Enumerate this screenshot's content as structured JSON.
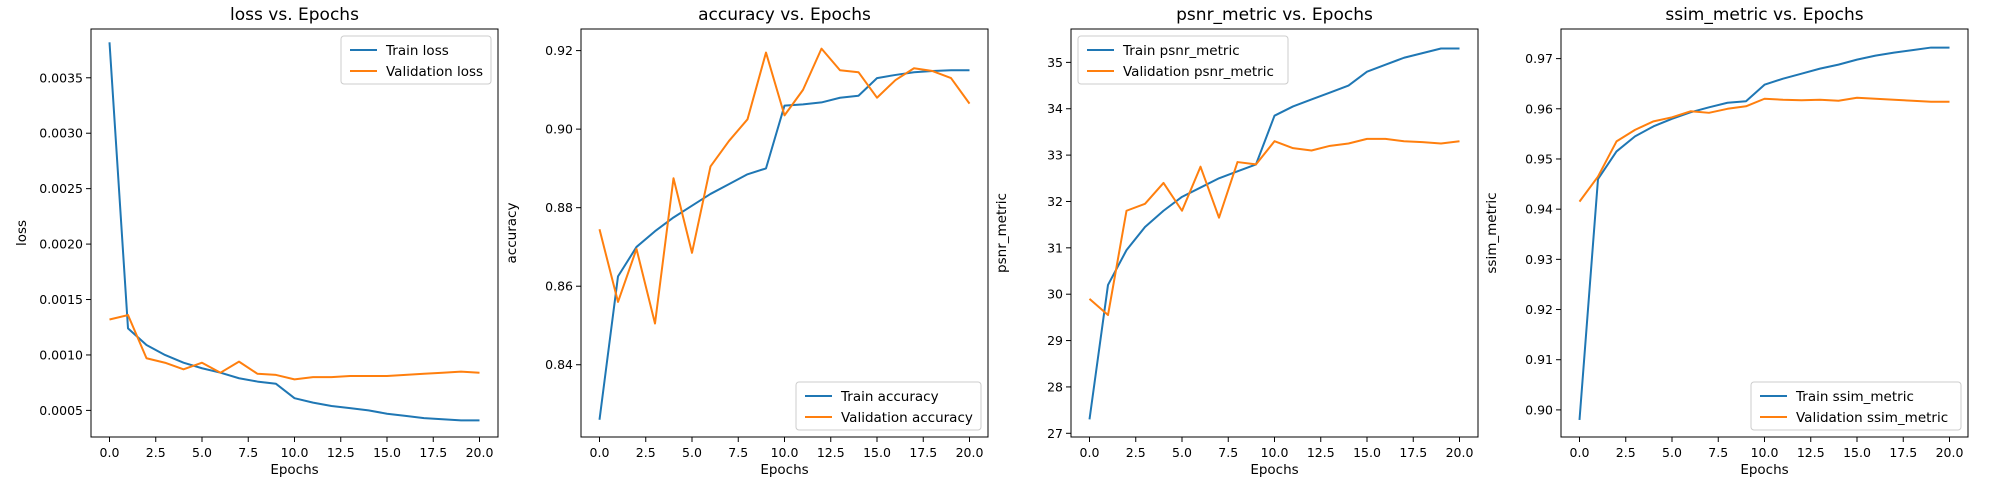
{
  "chart_data": [
    {
      "type": "line",
      "title": "loss vs. Epochs",
      "xlabel": "Epochs",
      "ylabel": "loss",
      "xlim": [
        -1,
        21
      ],
      "ylim": [
        0.00026,
        0.00394
      ],
      "xticks": [
        0.0,
        2.5,
        5.0,
        7.5,
        10.0,
        12.5,
        15.0,
        17.5,
        20.0
      ],
      "xtick_labels": [
        "0.0",
        "2.5",
        "5.0",
        "7.5",
        "10.0",
        "12.5",
        "15.0",
        "17.5",
        "20.0"
      ],
      "yticks": [
        0.0005,
        0.001,
        0.0015,
        0.002,
        0.0025,
        0.003,
        0.0035
      ],
      "ytick_labels": [
        "0.0005",
        "0.0010",
        "0.0015",
        "0.0020",
        "0.0025",
        "0.0030",
        "0.0035"
      ],
      "legend": "upper-right",
      "x": [
        0,
        1,
        2,
        3,
        4,
        5,
        6,
        7,
        8,
        9,
        10,
        11,
        12,
        13,
        14,
        15,
        16,
        17,
        18,
        19,
        20
      ],
      "series": [
        {
          "name": "Train loss",
          "color": "#1f77b4",
          "values": [
            0.00382,
            0.00124,
            0.00109,
            0.001,
            0.00093,
            0.00088,
            0.00084,
            0.00079,
            0.00076,
            0.00074,
            0.00061,
            0.00057,
            0.00054,
            0.00052,
            0.0005,
            0.00047,
            0.00045,
            0.00043,
            0.00042,
            0.00041,
            0.00041
          ]
        },
        {
          "name": "Validation loss",
          "color": "#ff7f0e",
          "values": [
            0.00132,
            0.00136,
            0.00097,
            0.00093,
            0.00087,
            0.00093,
            0.00084,
            0.00094,
            0.00083,
            0.00082,
            0.00078,
            0.0008,
            0.0008,
            0.00081,
            0.00081,
            0.00081,
            0.00082,
            0.00083,
            0.00084,
            0.00085,
            0.00084
          ]
        }
      ]
    },
    {
      "type": "line",
      "title": "accuracy vs. Epochs",
      "xlabel": "Epochs",
      "ylabel": "accuracy",
      "xlim": [
        -1,
        21
      ],
      "ylim": [
        0.8216,
        0.9255
      ],
      "xticks": [
        0.0,
        2.5,
        5.0,
        7.5,
        10.0,
        12.5,
        15.0,
        17.5,
        20.0
      ],
      "xtick_labels": [
        "0.0",
        "2.5",
        "5.0",
        "7.5",
        "10.0",
        "12.5",
        "15.0",
        "17.5",
        "20.0"
      ],
      "yticks": [
        0.84,
        0.86,
        0.88,
        0.9,
        0.92
      ],
      "ytick_labels": [
        "0.84",
        "0.86",
        "0.88",
        "0.90",
        "0.92"
      ],
      "legend": "lower-right",
      "x": [
        0,
        1,
        2,
        3,
        4,
        5,
        6,
        7,
        8,
        9,
        10,
        11,
        12,
        13,
        14,
        15,
        16,
        17,
        18,
        19,
        20
      ],
      "series": [
        {
          "name": "Train accuracy",
          "color": "#1f77b4",
          "values": [
            0.826,
            0.8625,
            0.87,
            0.874,
            0.8775,
            0.8805,
            0.8835,
            0.886,
            0.8885,
            0.89,
            0.906,
            0.9063,
            0.9068,
            0.908,
            0.9085,
            0.913,
            0.9138,
            0.9145,
            0.9148,
            0.915,
            0.915
          ]
        },
        {
          "name": "Validation accuracy",
          "color": "#ff7f0e",
          "values": [
            0.8745,
            0.856,
            0.8695,
            0.8505,
            0.8875,
            0.8685,
            0.8905,
            0.897,
            0.9025,
            0.9195,
            0.9035,
            0.91,
            0.9205,
            0.915,
            0.9145,
            0.908,
            0.9125,
            0.9155,
            0.9148,
            0.913,
            0.9065
          ]
        }
      ]
    },
    {
      "type": "line",
      "title": "psnr_metric vs. Epochs",
      "xlabel": "Epochs",
      "ylabel": "psnr_metric",
      "xlim": [
        -1,
        21
      ],
      "ylim": [
        26.92,
        35.72
      ],
      "xticks": [
        0.0,
        2.5,
        5.0,
        7.5,
        10.0,
        12.5,
        15.0,
        17.5,
        20.0
      ],
      "xtick_labels": [
        "0.0",
        "2.5",
        "5.0",
        "7.5",
        "10.0",
        "12.5",
        "15.0",
        "17.5",
        "20.0"
      ],
      "yticks": [
        27,
        28,
        29,
        30,
        31,
        32,
        33,
        34,
        35
      ],
      "ytick_labels": [
        "27",
        "28",
        "29",
        "30",
        "31",
        "32",
        "33",
        "34",
        "35"
      ],
      "legend": "upper-left",
      "x": [
        0,
        1,
        2,
        3,
        4,
        5,
        6,
        7,
        8,
        9,
        10,
        11,
        12,
        13,
        14,
        15,
        16,
        17,
        18,
        19,
        20
      ],
      "series": [
        {
          "name": "Train psnr_metric",
          "color": "#1f77b4",
          "values": [
            27.3,
            30.2,
            30.95,
            31.45,
            31.8,
            32.1,
            32.3,
            32.5,
            32.65,
            32.8,
            33.85,
            34.05,
            34.2,
            34.35,
            34.5,
            34.8,
            34.95,
            35.1,
            35.2,
            35.3,
            35.3
          ]
        },
        {
          "name": "Validation psnr_metric",
          "color": "#ff7f0e",
          "values": [
            29.9,
            29.55,
            31.8,
            31.95,
            32.4,
            31.8,
            32.75,
            31.65,
            32.85,
            32.8,
            33.3,
            33.15,
            33.1,
            33.2,
            33.25,
            33.35,
            33.35,
            33.3,
            33.28,
            33.25,
            33.3
          ]
        }
      ]
    },
    {
      "type": "line",
      "title": "ssim_metric vs. Epochs",
      "xlabel": "Epochs",
      "ylabel": "ssim_metric",
      "xlim": [
        -1,
        21
      ],
      "ylim": [
        0.8946,
        0.9759
      ],
      "xticks": [
        0.0,
        2.5,
        5.0,
        7.5,
        10.0,
        12.5,
        15.0,
        17.5,
        20.0
      ],
      "xtick_labels": [
        "0.0",
        "2.5",
        "5.0",
        "7.5",
        "10.0",
        "12.5",
        "15.0",
        "17.5",
        "20.0"
      ],
      "yticks": [
        0.9,
        0.91,
        0.92,
        0.93,
        0.94,
        0.95,
        0.96,
        0.97
      ],
      "ytick_labels": [
        "0.90",
        "0.91",
        "0.92",
        "0.93",
        "0.94",
        "0.95",
        "0.96",
        "0.97"
      ],
      "legend": "lower-right",
      "x": [
        0,
        1,
        2,
        3,
        4,
        5,
        6,
        7,
        8,
        9,
        10,
        11,
        12,
        13,
        14,
        15,
        16,
        17,
        18,
        19,
        20
      ],
      "series": [
        {
          "name": "Train ssim_metric",
          "color": "#1f77b4",
          "values": [
            0.898,
            0.946,
            0.9515,
            0.9545,
            0.9565,
            0.958,
            0.9593,
            0.9603,
            0.9612,
            0.9615,
            0.9648,
            0.966,
            0.967,
            0.968,
            0.9688,
            0.9698,
            0.9706,
            0.9712,
            0.9717,
            0.9722,
            0.9722
          ]
        },
        {
          "name": "Validation ssim_metric",
          "color": "#ff7f0e",
          "values": [
            0.9415,
            0.9465,
            0.9535,
            0.9558,
            0.9575,
            0.9583,
            0.9595,
            0.9592,
            0.96,
            0.9605,
            0.962,
            0.9618,
            0.9617,
            0.9618,
            0.9616,
            0.9622,
            0.962,
            0.9618,
            0.9616,
            0.9614,
            0.9614
          ]
        }
      ]
    }
  ]
}
